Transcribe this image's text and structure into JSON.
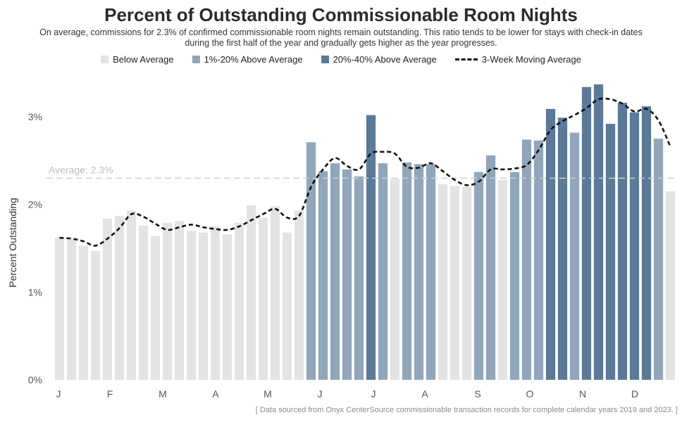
{
  "title": "Percent of Outstanding Commissionable Room Nights",
  "subtitle": "On average, commissions for 2.3% of confirmed commissionable room nights remain outstanding. This ratio tends to be lower for stays with check-in dates during the first half of the year and gradually gets higher as the year progresses.",
  "legend": [
    {
      "label": "Below Average",
      "color": "#e3e3e3",
      "kind": "swatch"
    },
    {
      "label": "1%-20% Above Average",
      "color": "#91a6ba",
      "kind": "swatch"
    },
    {
      "label": "20%-40% Above Average",
      "color": "#5b7a98",
      "kind": "swatch"
    },
    {
      "label": "3-Week Moving Average",
      "color": "#111111",
      "kind": "dash"
    }
  ],
  "source": "[ Data sourced from Onyx CenterSource commissionable transaction records for complete calendar years 2019 and 2023. ]",
  "chart_data": {
    "type": "bar",
    "ylabel": "Percent Outstanding",
    "ylim": [
      0,
      3.45
    ],
    "yticks": [
      0,
      1,
      2,
      3
    ],
    "ytick_labels": [
      "0%",
      "1%",
      "2%",
      "3%"
    ],
    "month_labels": [
      "J",
      "F",
      "M",
      "A",
      "M",
      "J",
      "J",
      "A",
      "S",
      "O",
      "N",
      "D"
    ],
    "average": {
      "value": 2.3,
      "label": "Average: 2.3%"
    },
    "colors": {
      "below": "#e3e3e3",
      "above1": "#91a6ba",
      "above2": "#5b7a98",
      "average_line": "#cfcfcf"
    },
    "values": [
      1.62,
      1.6,
      1.53,
      1.47,
      1.84,
      1.87,
      1.93,
      1.76,
      1.64,
      1.79,
      1.81,
      1.7,
      1.68,
      1.75,
      1.66,
      1.79,
      1.99,
      1.85,
      1.98,
      1.68,
      1.93,
      2.71,
      2.38,
      2.47,
      2.4,
      2.32,
      3.02,
      2.47,
      2.29,
      2.48,
      2.46,
      2.46,
      2.23,
      2.21,
      2.2,
      2.37,
      2.56,
      2.28,
      2.37,
      2.74,
      2.73,
      3.09,
      2.99,
      2.82,
      3.34,
      3.37,
      2.92,
      3.16,
      3.05,
      3.12,
      2.75,
      2.15
    ],
    "categories": [
      "below",
      "below",
      "below",
      "below",
      "below",
      "below",
      "below",
      "below",
      "below",
      "below",
      "below",
      "below",
      "below",
      "below",
      "below",
      "below",
      "below",
      "below",
      "below",
      "below",
      "below",
      "above1",
      "above1",
      "above1",
      "above1",
      "above1",
      "above2",
      "above1",
      "below",
      "above1",
      "above1",
      "above1",
      "below",
      "below",
      "below",
      "above1",
      "above1",
      "below",
      "above1",
      "above1",
      "above1",
      "above2",
      "above2",
      "above1",
      "above2",
      "above2",
      "above2",
      "above2",
      "above2",
      "above2",
      "above1",
      "below"
    ],
    "moving_average": [
      1.62,
      1.61,
      1.58,
      1.53,
      1.61,
      1.73,
      1.89,
      1.86,
      1.78,
      1.71,
      1.74,
      1.77,
      1.74,
      1.72,
      1.71,
      1.75,
      1.82,
      1.89,
      1.95,
      1.85,
      1.87,
      2.2,
      2.4,
      2.53,
      2.44,
      2.4,
      2.58,
      2.6,
      2.58,
      2.43,
      2.42,
      2.47,
      2.38,
      2.28,
      2.22,
      2.26,
      2.4,
      2.4,
      2.41,
      2.45,
      2.62,
      2.85,
      2.95,
      3.02,
      3.1,
      3.2,
      3.2,
      3.15,
      3.06,
      3.09,
      2.96,
      2.66
    ]
  }
}
